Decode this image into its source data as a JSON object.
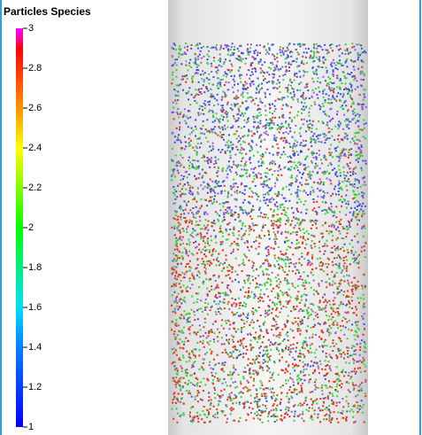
{
  "chart_data": {
    "type": "colorbar",
    "title": "Particles Species",
    "ylim": [
      1,
      3
    ],
    "yticks": [
      1,
      1.2,
      1.4,
      1.6,
      1.8,
      2,
      2.2,
      2.4,
      2.6,
      2.8,
      3
    ]
  }
}
